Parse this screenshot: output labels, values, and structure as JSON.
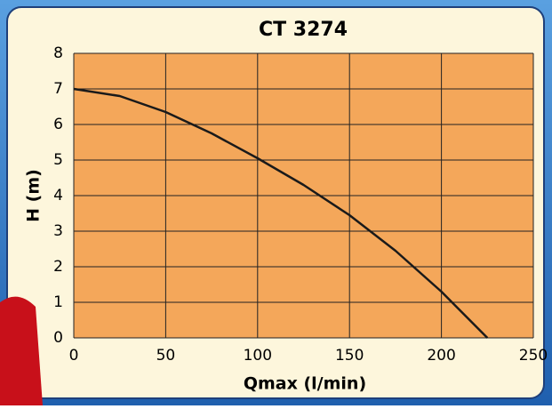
{
  "chart_data": {
    "type": "line",
    "title": "CT 3274",
    "x_label": "Qmax (l/min)",
    "y_label": "H (m)",
    "x": [
      0,
      25,
      50,
      75,
      100,
      125,
      150,
      175,
      200,
      225
    ],
    "series": [
      {
        "name": "CT 3274",
        "color": "#1a1a1a",
        "values": [
          7,
          6.8,
          6.35,
          5.75,
          5.05,
          4.3,
          3.45,
          2.45,
          1.3,
          0
        ]
      }
    ],
    "xlim": [
      0,
      250
    ],
    "xticks": [
      0,
      50,
      100,
      150,
      200,
      250
    ],
    "ylim": [
      0,
      8
    ],
    "yticks": [
      0,
      1,
      2,
      3,
      4,
      5,
      6,
      7,
      8
    ],
    "grid": true,
    "plot_background": "#f4a75a"
  }
}
